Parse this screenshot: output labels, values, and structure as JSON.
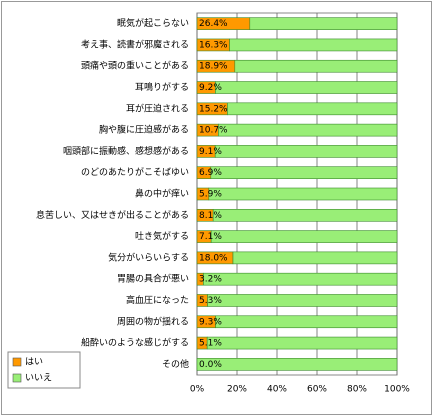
{
  "chart_data": {
    "type": "stacked_bar_horizontal",
    "categories": [
      "眠気が起こらない",
      "考え事、読書が邪魔される",
      "頭痛や頭の重いことがある",
      "耳鳴りがする",
      "耳が圧迫される",
      "胸や腹に圧迫感がある",
      "咽頭部に振動感、感想感がある",
      "のどのあたりがこそばゆい",
      "鼻の中が痒い",
      "息苦しい、又はせきが出ることがある",
      "吐き気がする",
      "気分がいらいらする",
      "胃腸の具合が悪い",
      "高血圧になった",
      "周囲の物が揺れる",
      "船酔いのような感じがする",
      "その他"
    ],
    "series": [
      {
        "name": "はい",
        "color": "#ff9900",
        "values": [
          26.4,
          16.3,
          18.9,
          9.2,
          15.2,
          10.7,
          9.1,
          6.9,
          5.9,
          8.1,
          7.1,
          18.0,
          3.2,
          5.3,
          9.3,
          5.1,
          0.0
        ],
        "value_labels": [
          "26.4%",
          "16.3%",
          "18.9%",
          "9.2%",
          "15.2%",
          "10.7%",
          "9.1%",
          "6.9%",
          "5.9%",
          "8.1%",
          "7.1%",
          "18.0%",
          "3.2%",
          "5.3%",
          "9.3%",
          "5.1%",
          "0.0%"
        ]
      },
      {
        "name": "いいえ",
        "color": "#99ee77",
        "values": [
          73.6,
          83.7,
          81.1,
          90.8,
          84.8,
          89.3,
          90.9,
          93.1,
          94.1,
          91.9,
          92.9,
          82.0,
          96.8,
          94.7,
          90.7,
          94.9,
          100.0
        ]
      }
    ],
    "xlim": [
      0,
      100
    ],
    "xticks": [
      {
        "value": 0,
        "label": "0%"
      },
      {
        "value": 20,
        "label": "20%"
      },
      {
        "value": 40,
        "label": "40%"
      },
      {
        "value": 60,
        "label": "60%"
      },
      {
        "value": 80,
        "label": "80%"
      },
      {
        "value": 100,
        "label": "100%"
      }
    ],
    "grid": true,
    "legend": "bottom-left"
  }
}
